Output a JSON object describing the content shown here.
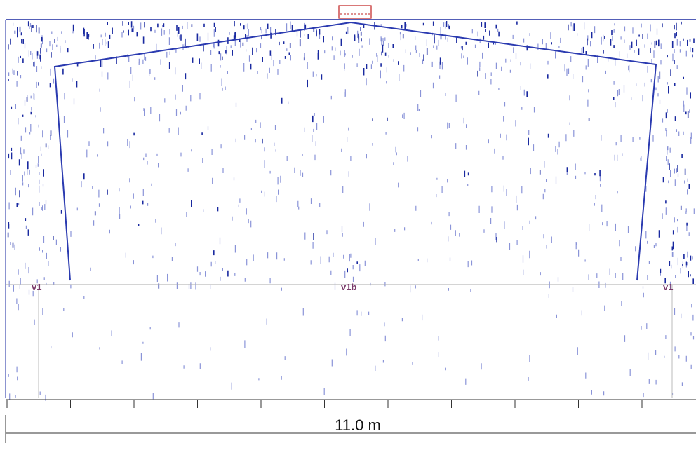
{
  "labels": [
    "v1",
    "v1b",
    "v1"
  ],
  "scale_bar": {
    "label": "11.0 m"
  }
}
